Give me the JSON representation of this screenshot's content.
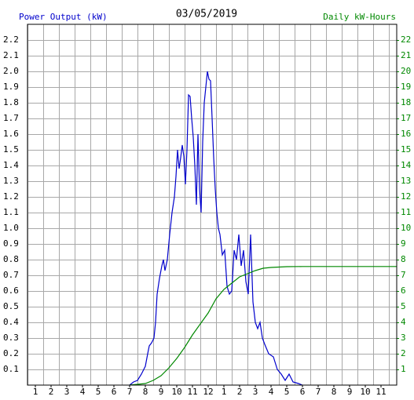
{
  "chart_data": {
    "type": "line",
    "title": "03/05/2019",
    "ylabel": "Power Output (kW)",
    "y2label": "Daily kW-Hours",
    "xlim": [
      0.5,
      24
    ],
    "xticks": [
      {
        "value": 1,
        "label": "1"
      },
      {
        "value": 2,
        "label": "2"
      },
      {
        "value": 3,
        "label": "3"
      },
      {
        "value": 4,
        "label": "4"
      },
      {
        "value": 5,
        "label": "5"
      },
      {
        "value": 6,
        "label": "6"
      },
      {
        "value": 7,
        "label": "7"
      },
      {
        "value": 8,
        "label": "8"
      },
      {
        "value": 9,
        "label": "9"
      },
      {
        "value": 10,
        "label": "10"
      },
      {
        "value": 11,
        "label": "11"
      },
      {
        "value": 12,
        "label": "12"
      },
      {
        "value": 13,
        "label": "1"
      },
      {
        "value": 14,
        "label": "2"
      },
      {
        "value": 15,
        "label": "3"
      },
      {
        "value": 16,
        "label": "4"
      },
      {
        "value": 17,
        "label": "5"
      },
      {
        "value": 18,
        "label": "6"
      },
      {
        "value": 19,
        "label": "7"
      },
      {
        "value": 20,
        "label": "8"
      },
      {
        "value": 21,
        "label": "9"
      },
      {
        "value": 22,
        "label": "10"
      },
      {
        "value": 23,
        "label": "11"
      }
    ],
    "ylim": [
      0,
      2.3
    ],
    "yticks": [
      0.1,
      0.2,
      0.3,
      0.4,
      0.5,
      0.6,
      0.7,
      0.8,
      0.9,
      {
        "value": 1.0,
        "label": "1.0"
      },
      1.1,
      1.2,
      1.3,
      1.4,
      1.5,
      1.6,
      1.7,
      1.8,
      1.9,
      {
        "value": 2.0,
        "label": "2.0"
      },
      2.1,
      2.2
    ],
    "y2lim": [
      0,
      23
    ],
    "y2ticks": [
      1,
      2,
      3,
      4,
      5,
      6,
      7,
      8,
      9,
      10,
      11,
      12,
      13,
      14,
      15,
      16,
      17,
      18,
      19,
      20,
      21,
      22
    ],
    "grid": true,
    "series": [
      {
        "name": "Power Output (kW)",
        "color": "#0000cc",
        "x": [
          7.0,
          7.25,
          7.5,
          7.75,
          8.0,
          8.15,
          8.25,
          8.4,
          8.55,
          8.65,
          8.75,
          8.9,
          9.05,
          9.15,
          9.25,
          9.4,
          9.55,
          9.7,
          9.85,
          9.95,
          10.05,
          10.15,
          10.25,
          10.35,
          10.45,
          10.55,
          10.65,
          10.75,
          10.85,
          10.95,
          11.05,
          11.15,
          11.25,
          11.35,
          11.45,
          11.55,
          11.65,
          11.75,
          11.85,
          11.95,
          12.05,
          12.15,
          12.25,
          12.35,
          12.45,
          12.55,
          12.65,
          12.75,
          12.9,
          13.05,
          13.2,
          13.35,
          13.5,
          13.65,
          13.8,
          13.95,
          14.1,
          14.25,
          14.4,
          14.55,
          14.7,
          14.85,
          15.0,
          15.15,
          15.3,
          15.45,
          15.6,
          15.85,
          16.15,
          16.4,
          16.65,
          16.9,
          17.15,
          17.4,
          17.75,
          18.0
        ],
        "values": [
          0,
          0.02,
          0.03,
          0.07,
          0.12,
          0.2,
          0.25,
          0.27,
          0.3,
          0.4,
          0.58,
          0.68,
          0.76,
          0.8,
          0.73,
          0.8,
          0.96,
          1.1,
          1.2,
          1.33,
          1.5,
          1.38,
          1.45,
          1.53,
          1.46,
          1.28,
          1.5,
          1.85,
          1.84,
          1.7,
          1.58,
          1.4,
          1.15,
          1.6,
          1.25,
          1.1,
          1.55,
          1.8,
          1.9,
          2.0,
          1.95,
          1.94,
          1.7,
          1.45,
          1.25,
          1.1,
          1.0,
          0.96,
          0.83,
          0.86,
          0.63,
          0.58,
          0.6,
          0.86,
          0.8,
          0.96,
          0.76,
          0.86,
          0.66,
          0.58,
          0.96,
          0.53,
          0.4,
          0.36,
          0.4,
          0.3,
          0.26,
          0.2,
          0.18,
          0.1,
          0.07,
          0.03,
          0.07,
          0.02,
          0.01,
          0
        ]
      },
      {
        "name": "Daily kW-Hours",
        "color": "#008800",
        "axis": "y2",
        "x": [
          7.0,
          8.0,
          8.5,
          9.0,
          9.5,
          10.0,
          10.5,
          11.0,
          11.5,
          12.0,
          12.5,
          13.0,
          13.5,
          14.0,
          14.5,
          15.0,
          15.5,
          16.0,
          17.0,
          18.0,
          24.0
        ],
        "values": [
          0,
          0.1,
          0.3,
          0.6,
          1.1,
          1.7,
          2.4,
          3.2,
          3.9,
          4.6,
          5.5,
          6.1,
          6.5,
          6.9,
          7.1,
          7.3,
          7.45,
          7.5,
          7.55,
          7.56,
          7.56
        ]
      }
    ]
  }
}
